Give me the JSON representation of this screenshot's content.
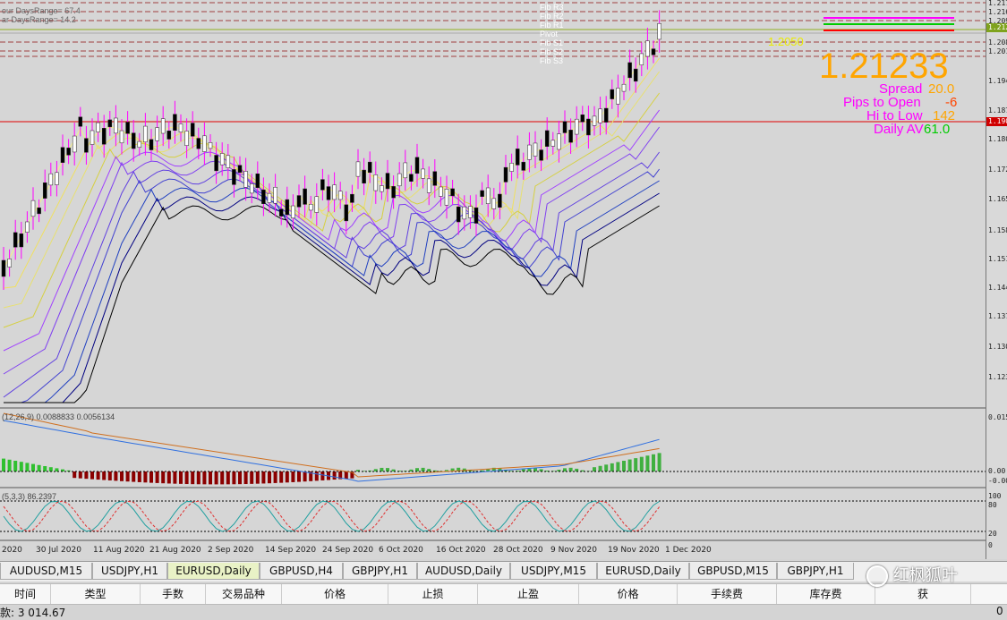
{
  "main_chart": {
    "symbol_timeframe": "EURUSD,Daily",
    "price_display": "1.21233",
    "info_panel": {
      "spread_label": "Spread",
      "spread_value": "20.0",
      "pips_open_label": "Pips to Open",
      "pips_open_value": "-6",
      "hi_low_label": "Hi to Low",
      "hi_low_value": "142",
      "daily_av_label": "Daily AV",
      "daily_av_value": "61.0"
    },
    "top_left_labels": [
      "our DaysRange= 67.4",
      "ar DaysRange= 14.2"
    ],
    "yellow_price_label": "1.2050",
    "level_labels": [
      "Fib R3",
      "Fib R2",
      "Fib R1",
      "Pivot",
      "Fib S1",
      "Fib S2",
      "Fib S3"
    ],
    "price_ticks": [
      "1.217",
      "1.216",
      "1.209",
      "1.208",
      "1.201",
      "1.194",
      "1.187",
      "1.180",
      "1.172",
      "1.165",
      "1.158",
      "1.151",
      "1.144",
      "1.137",
      "1.130",
      "1.123"
    ],
    "current_price_tag": "1.212",
    "red_line_tag": "1.190",
    "colors": {
      "bull_candle": "#ffffff",
      "bear_candle": "#000000",
      "red_line": "#e00000",
      "price_label": "#ffa500",
      "magenta": "#ff00ff"
    }
  },
  "macd": {
    "label": "(12,26,9) 0.0088833 0.0056134",
    "ticks": [
      "0.015",
      "0.00",
      "-0.004"
    ]
  },
  "stoch": {
    "label": "(5,3,3) 86.2397",
    "ticks": [
      "100",
      "80",
      "20",
      "0"
    ]
  },
  "date_labels": [
    "2020",
    "30 Jul 2020",
    "11 Aug 2020",
    "21 Aug 2020",
    "2 Sep 2020",
    "14 Sep 2020",
    "24 Sep 2020",
    "6 Oct 2020",
    "16 Oct 2020",
    "28 Oct 2020",
    "9 Nov 2020",
    "19 Nov 2020",
    "1 Dec 2020"
  ],
  "tabs": [
    {
      "label": "AUDUSD,M15",
      "active": false
    },
    {
      "label": "USDJPY,H1",
      "active": false
    },
    {
      "label": "EURUSD,Daily",
      "active": true
    },
    {
      "label": "GBPUSD,H4",
      "active": false
    },
    {
      "label": "GBPJPY,H1",
      "active": false
    },
    {
      "label": "AUDUSD,Daily",
      "active": false
    },
    {
      "label": "USDJPY,M15",
      "active": false
    },
    {
      "label": "EURUSD,Daily",
      "active": false
    },
    {
      "label": "GBPUSD,M15",
      "active": false
    },
    {
      "label": "GBPJPY,H1",
      "active": false
    }
  ],
  "trade_table": {
    "columns": [
      "时间",
      "类型",
      "手数",
      "交易品种",
      "价格",
      "止损",
      "止盈",
      "价格",
      "手续费",
      "库存费",
      "获"
    ]
  },
  "balance_text": "款: 3 014.67",
  "balance_right": "0",
  "watermark": "红枫狐叶"
}
